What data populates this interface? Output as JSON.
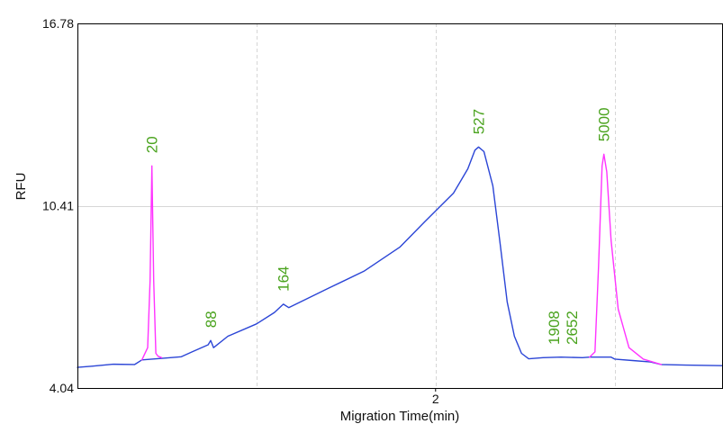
{
  "colors": {
    "trace": "#2b45d6",
    "marker_peak": "#ff33ff",
    "peak_label": "#4aa31e",
    "grid": "#d6d6d6",
    "axis": "#000000"
  },
  "chart_data": {
    "type": "line",
    "xlabel": "Migration Time(min)",
    "ylabel": "RFU",
    "xlim": [
      1.0,
      2.8
    ],
    "ylim": [
      4.04,
      16.78
    ],
    "x_ticks": [
      {
        "value": 2,
        "label": "2"
      }
    ],
    "y_ticks": [
      {
        "value": 16.78,
        "label": "16.78"
      },
      {
        "value": 10.41,
        "label": "10.41"
      },
      {
        "value": 4.04,
        "label": "4.04"
      }
    ],
    "grid": true,
    "x_grid_values": [
      1.5,
      2.0,
      2.5
    ],
    "series": [
      {
        "role": "sample",
        "color": "#2b45d6",
        "points": [
          [
            1.0,
            4.76
          ],
          [
            1.04,
            4.8
          ],
          [
            1.1,
            4.87
          ],
          [
            1.16,
            4.86
          ],
          [
            1.18,
            5.02
          ],
          [
            1.24,
            5.08
          ],
          [
            1.29,
            5.13
          ],
          [
            1.32,
            5.3
          ],
          [
            1.365,
            5.55
          ],
          [
            1.372,
            5.7
          ],
          [
            1.38,
            5.45
          ],
          [
            1.42,
            5.85
          ],
          [
            1.5,
            6.28
          ],
          [
            1.55,
            6.68
          ],
          [
            1.575,
            6.97
          ],
          [
            1.59,
            6.85
          ],
          [
            1.7,
            7.52
          ],
          [
            1.8,
            8.12
          ],
          [
            1.9,
            8.96
          ],
          [
            1.97,
            9.85
          ],
          [
            2.05,
            10.85
          ],
          [
            2.09,
            11.7
          ],
          [
            2.11,
            12.35
          ],
          [
            2.12,
            12.46
          ],
          [
            2.135,
            12.3
          ],
          [
            2.16,
            11.1
          ],
          [
            2.18,
            9.1
          ],
          [
            2.2,
            7.05
          ],
          [
            2.22,
            5.85
          ],
          [
            2.24,
            5.25
          ],
          [
            2.26,
            5.06
          ],
          [
            2.3,
            5.1
          ],
          [
            2.35,
            5.12
          ],
          [
            2.41,
            5.1
          ],
          [
            2.43,
            5.12
          ],
          [
            2.49,
            5.12
          ],
          [
            2.5,
            5.05
          ],
          [
            2.55,
            5.0
          ],
          [
            2.6,
            4.95
          ],
          [
            2.63,
            4.86
          ],
          [
            2.7,
            4.84
          ],
          [
            2.8,
            4.82
          ]
        ]
      },
      {
        "role": "size-marker",
        "color": "#ff33ff",
        "points": [
          [
            1.18,
            5.02
          ],
          [
            1.196,
            5.45
          ],
          [
            1.203,
            7.8
          ],
          [
            1.208,
            11.8
          ],
          [
            1.213,
            7.8
          ],
          [
            1.219,
            5.25
          ],
          [
            1.225,
            5.15
          ],
          [
            1.235,
            5.1
          ]
        ]
      },
      {
        "role": "size-marker",
        "color": "#ff33ff",
        "points": [
          [
            2.43,
            5.12
          ],
          [
            2.445,
            5.3
          ],
          [
            2.455,
            8.3
          ],
          [
            2.465,
            11.8
          ],
          [
            2.47,
            12.21
          ],
          [
            2.478,
            11.6
          ],
          [
            2.49,
            9.2
          ],
          [
            2.51,
            6.8
          ],
          [
            2.54,
            5.45
          ],
          [
            2.58,
            5.05
          ],
          [
            2.63,
            4.86
          ]
        ]
      }
    ],
    "peaks": [
      {
        "label": "20",
        "x": 1.208,
        "y": 11.8
      },
      {
        "label": "88",
        "x": 1.372,
        "y": 5.7
      },
      {
        "label": "164",
        "x": 1.575,
        "y": 6.97
      },
      {
        "label": "527",
        "x": 2.12,
        "y": 12.46
      },
      {
        "label": "1908",
        "x": 2.33,
        "y": 5.11
      },
      {
        "label": "2652",
        "x": 2.38,
        "y": 5.11
      },
      {
        "label": "5000",
        "x": 2.47,
        "y": 12.21
      }
    ]
  }
}
